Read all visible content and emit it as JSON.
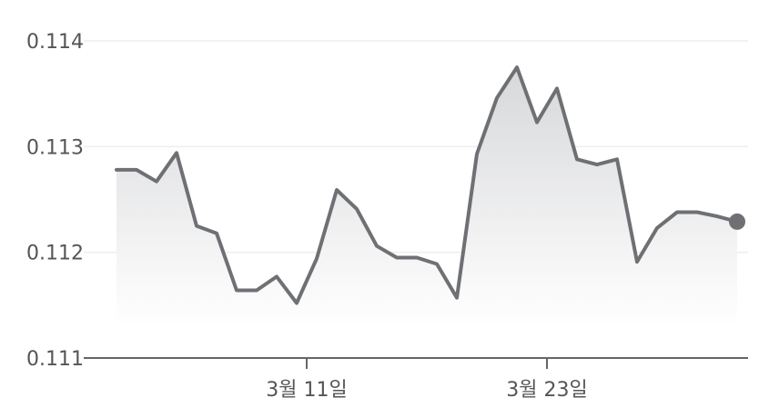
{
  "chart_data": {
    "type": "area",
    "title": "",
    "xlabel": "",
    "ylabel": "",
    "ylim": [
      0.111,
      0.114
    ],
    "yticks": [
      "0.114",
      "0.113",
      "0.112",
      "0.111"
    ],
    "xticks": [
      {
        "label": "3월 11일",
        "index": 9.5
      },
      {
        "label": "3월 23일",
        "index": 21.5
      }
    ],
    "grid": true,
    "legend": "none",
    "colors": {
      "line": "#6f7074",
      "area_top": "#d7d8da",
      "area_bottom": "#ffffff",
      "grid": "#eeeeee",
      "axis": "#666666"
    },
    "values": [
      0.11278,
      0.11278,
      0.11267,
      0.11294,
      0.11225,
      0.11218,
      0.11164,
      0.11164,
      0.11177,
      0.11152,
      0.11194,
      0.11259,
      0.11241,
      0.11206,
      0.11195,
      0.11195,
      0.11189,
      0.11157,
      0.11293,
      0.11346,
      0.11375,
      0.11323,
      0.11355,
      0.11288,
      0.11283,
      0.11288,
      0.11191,
      0.11223,
      0.11238,
      0.11238,
      0.11234,
      0.11229
    ]
  }
}
